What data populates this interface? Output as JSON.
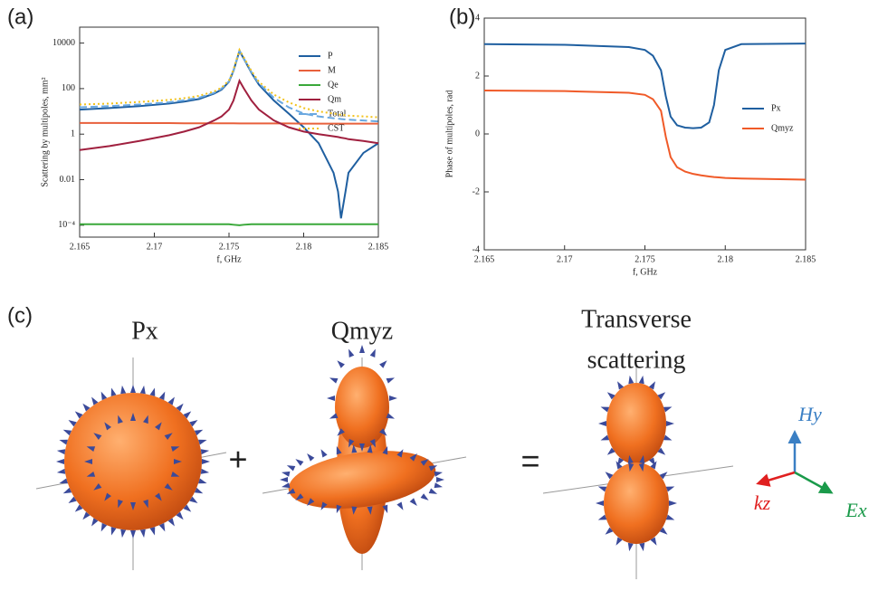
{
  "panel_labels": [
    "(a)",
    "(b)",
    "(c)"
  ],
  "chart_data": [
    {
      "type": "line",
      "x_label": "f, GHz",
      "y_label": "Scattering by multipoles, mm²",
      "log_y": true,
      "legend": "upper right",
      "xlim": [
        2.165,
        2.185
      ],
      "xticks": [
        2.165,
        2.17,
        2.175,
        2.18,
        2.185
      ],
      "ylim": [
        3e-05,
        50000
      ],
      "yticks": [
        {
          "value": 0.0001,
          "label": "10⁻⁴"
        },
        0.01,
        1,
        100,
        10000
      ],
      "x": [
        2.165,
        2.167,
        2.169,
        2.171,
        2.172,
        2.173,
        2.174,
        2.1745,
        2.175,
        2.1753,
        2.1757,
        2.176,
        2.1765,
        2.177,
        2.178,
        2.179,
        2.18,
        2.181,
        2.182,
        2.1823,
        2.1825,
        2.1828,
        2.183,
        2.184,
        2.185
      ],
      "series": [
        {
          "name": "P",
          "color": "#1f5fa0",
          "line_style": "solid",
          "values": [
            12,
            14,
            17,
            22,
            27,
            35,
            60,
            90,
            200,
            600,
            4500,
            2000,
            500,
            150,
            30,
            8,
            2,
            0.4,
            0.02,
            0.003,
            0.0002,
            0.003,
            0.02,
            0.15,
            0.4
          ]
        },
        {
          "name": "M",
          "color": "#e8603c",
          "line_style": "solid",
          "values": [
            3.1,
            3.1,
            3.05,
            3.05,
            3.0,
            3.0,
            3.0,
            3.0,
            3.0,
            3.0,
            2.95,
            2.95,
            2.95,
            2.95,
            2.95,
            2.95,
            2.9,
            2.9,
            2.9,
            2.9,
            2.9,
            2.9,
            2.9,
            2.9,
            2.9
          ]
        },
        {
          "name": "Qe",
          "color": "#3aa83a",
          "line_style": "solid",
          "values": [
            0.00011,
            0.00011,
            0.00011,
            0.00011,
            0.00011,
            0.00011,
            0.00011,
            0.00011,
            0.00011,
            0.000105,
            0.0001,
            0.000105,
            0.00011,
            0.00011,
            0.00011,
            0.00011,
            0.00011,
            0.00011,
            0.00011,
            0.00011,
            0.00011,
            0.00011,
            0.00011,
            0.00011,
            0.00011
          ]
        },
        {
          "name": "Qm",
          "color": "#a0203f",
          "line_style": "solid",
          "values": [
            0.2,
            0.3,
            0.5,
            0.9,
            1.3,
            2,
            4,
            6,
            12,
            30,
            220,
            100,
            30,
            12,
            4,
            2,
            1.3,
            1,
            0.8,
            0.75,
            0.7,
            0.65,
            0.6,
            0.5,
            0.4
          ]
        },
        {
          "name": "Total",
          "color": "#6aa8e0",
          "line_style": "dashed",
          "values": [
            15,
            17,
            20,
            25,
            31,
            40,
            65,
            100,
            210,
            630,
            4700,
            2100,
            530,
            170,
            40,
            15,
            8,
            6,
            5,
            4.8,
            4.6,
            4.4,
            4.3,
            4,
            3.6
          ]
        },
        {
          "name": "CST",
          "color": "#f2c21c",
          "line_style": "dotted",
          "values": [
            20,
            22,
            26,
            32,
            38,
            48,
            75,
            110,
            230,
            680,
            5000,
            2300,
            600,
            200,
            55,
            25,
            14,
            10,
            8,
            7.5,
            7,
            6.8,
            6.5,
            6,
            5.5
          ]
        }
      ]
    },
    {
      "type": "line",
      "x_label": "f, GHz",
      "y_label": "Phase of multipoles, rad",
      "log_y": false,
      "legend": "right",
      "xlim": [
        2.165,
        2.185
      ],
      "xticks": [
        2.165,
        2.17,
        2.175,
        2.18,
        2.185
      ],
      "ylim": [
        -4,
        4
      ],
      "yticks": [
        -4,
        -2,
        0,
        2,
        4
      ],
      "x": [
        2.165,
        2.17,
        2.174,
        2.175,
        2.1755,
        2.176,
        2.1763,
        2.1766,
        2.177,
        2.1775,
        2.178,
        2.1785,
        2.179,
        2.1793,
        2.1796,
        2.18,
        2.181,
        2.185
      ],
      "series": [
        {
          "name": "Px",
          "color": "#1f5fa0",
          "line_style": "solid",
          "values": [
            3.1,
            3.08,
            3.0,
            2.9,
            2.7,
            2.2,
            1.3,
            0.6,
            0.3,
            0.22,
            0.2,
            0.22,
            0.4,
            1.0,
            2.2,
            2.9,
            3.1,
            3.12
          ]
        },
        {
          "name": "Qmyz",
          "color": "#f05a28",
          "line_style": "solid",
          "values": [
            1.5,
            1.48,
            1.42,
            1.35,
            1.2,
            0.8,
            -0.1,
            -0.8,
            -1.15,
            -1.3,
            -1.38,
            -1.43,
            -1.47,
            -1.49,
            -1.5,
            -1.52,
            -1.54,
            -1.58
          ]
        }
      ]
    }
  ],
  "illustration": {
    "px": "Px",
    "qm": "Qmyz",
    "result_line1": "Transverse",
    "result_line2": "scattering",
    "plus": "+",
    "equals": "=",
    "axis_h": "Hy",
    "axis_e": "Ex",
    "axis_k": "kz"
  }
}
